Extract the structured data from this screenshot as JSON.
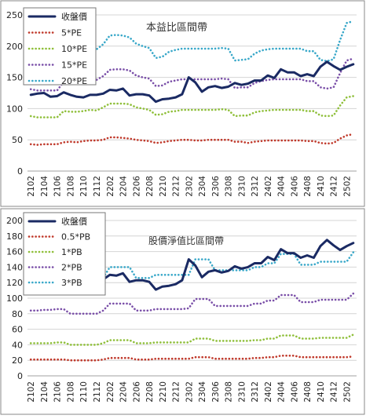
{
  "chart_data": [
    {
      "type": "line",
      "title": "本益比區間帶",
      "xlabel": "",
      "ylabel": "",
      "ylim": [
        0,
        250
      ],
      "yticks": [
        "0",
        "50",
        "100",
        "150",
        "200",
        "250"
      ],
      "grid": true,
      "legend_position": "top-left",
      "x": [
        "2102",
        "2103",
        "2104",
        "2105",
        "2106",
        "2107",
        "2108",
        "2109",
        "2110",
        "2111",
        "2112",
        "2201",
        "2202",
        "2203",
        "2204",
        "2205",
        "2206",
        "2207",
        "2208",
        "2209",
        "2210",
        "2211",
        "2212",
        "2301",
        "2302",
        "2303",
        "2304",
        "2305",
        "2306",
        "2307",
        "2308",
        "2309",
        "2310",
        "2311",
        "2312",
        "2401",
        "2402",
        "2403",
        "2404",
        "2405",
        "2406",
        "2407",
        "2408",
        "2409",
        "2410",
        "2411",
        "2412",
        "2501",
        "2502",
        "2503"
      ],
      "xtick_labels": [
        "2102",
        "2104",
        "2106",
        "2108",
        "2110",
        "2112",
        "2202",
        "2204",
        "2206",
        "2208",
        "2210",
        "2212",
        "2302",
        "2304",
        "2306",
        "2308",
        "2310",
        "2312",
        "2402",
        "2404",
        "2406",
        "2408",
        "2410",
        "2412",
        "2502"
      ],
      "series": [
        {
          "name": "收盤價",
          "color": "#1a2a63",
          "style": "solid",
          "values": [
            122,
            124,
            125,
            119,
            120,
            126,
            122,
            119,
            118,
            122,
            122,
            124,
            130,
            129,
            132,
            121,
            123,
            123,
            121,
            111,
            115,
            116,
            118,
            123,
            150,
            142,
            127,
            134,
            136,
            133,
            135,
            141,
            138,
            140,
            145,
            145,
            153,
            149,
            163,
            158,
            158,
            152,
            155,
            152,
            167,
            175,
            168,
            162,
            167,
            171
          ]
        },
        {
          "name": "5*PE",
          "color": "#c0392b",
          "style": "dotted",
          "values": [
            43,
            42,
            43,
            43,
            43,
            46,
            47,
            46,
            48,
            49,
            49,
            50,
            54,
            54,
            53,
            52,
            50,
            49,
            48,
            45,
            46,
            48,
            49,
            50,
            50,
            49,
            49,
            50,
            50,
            50,
            50,
            47,
            47,
            45,
            47,
            48,
            49,
            49,
            49,
            49,
            49,
            49,
            48,
            48,
            45,
            44,
            45,
            52,
            57,
            59
          ]
        },
        {
          "name": "10*PE",
          "color": "#8fbf3a",
          "style": "dotted",
          "values": [
            88,
            86,
            86,
            86,
            86,
            96,
            95,
            95,
            96,
            98,
            97,
            102,
            108,
            108,
            108,
            107,
            102,
            100,
            98,
            90,
            91,
            95,
            96,
            98,
            98,
            98,
            98,
            98,
            98,
            99,
            98,
            88,
            89,
            89,
            94,
            96,
            97,
            98,
            98,
            98,
            98,
            98,
            96,
            96,
            89,
            88,
            89,
            105,
            118,
            120
          ]
        },
        {
          "name": "15*PE",
          "color": "#7a4fa8",
          "style": "dotted",
          "values": [
            131,
            129,
            129,
            129,
            129,
            143,
            143,
            142,
            144,
            147,
            146,
            152,
            162,
            163,
            163,
            161,
            153,
            150,
            148,
            136,
            137,
            143,
            145,
            147,
            147,
            147,
            147,
            147,
            147,
            148,
            147,
            133,
            134,
            134,
            141,
            144,
            146,
            147,
            147,
            147,
            147,
            147,
            144,
            144,
            134,
            132,
            134,
            157,
            177,
            180
          ]
        },
        {
          "name": "20*PE",
          "color": "#39a8c9",
          "style": "dotted",
          "values": [
            175,
            172,
            172,
            172,
            172,
            191,
            190,
            190,
            192,
            196,
            195,
            203,
            217,
            218,
            217,
            214,
            204,
            200,
            197,
            181,
            183,
            191,
            194,
            196,
            196,
            196,
            196,
            196,
            196,
            197,
            196,
            177,
            178,
            179,
            188,
            193,
            195,
            196,
            196,
            196,
            196,
            196,
            192,
            192,
            178,
            176,
            179,
            210,
            237,
            240
          ]
        }
      ]
    },
    {
      "type": "line",
      "title": "股價淨值比區間帶",
      "xlabel": "",
      "ylabel": "",
      "ylim": [
        0,
        200
      ],
      "yticks": [
        "0",
        "20",
        "40",
        "60",
        "80",
        "100",
        "120",
        "140",
        "160",
        "180",
        "200"
      ],
      "grid": true,
      "legend_position": "top-left",
      "x": [
        "2102",
        "2103",
        "2104",
        "2105",
        "2106",
        "2107",
        "2108",
        "2109",
        "2110",
        "2111",
        "2112",
        "2201",
        "2202",
        "2203",
        "2204",
        "2205",
        "2206",
        "2207",
        "2208",
        "2209",
        "2210",
        "2211",
        "2212",
        "2301",
        "2302",
        "2303",
        "2304",
        "2305",
        "2306",
        "2307",
        "2308",
        "2309",
        "2310",
        "2311",
        "2312",
        "2401",
        "2402",
        "2403",
        "2404",
        "2405",
        "2406",
        "2407",
        "2408",
        "2409",
        "2410",
        "2411",
        "2412",
        "2501",
        "2502",
        "2503"
      ],
      "xtick_labels": [
        "2102",
        "2104",
        "2106",
        "2108",
        "2110",
        "2112",
        "2202",
        "2204",
        "2206",
        "2208",
        "2210",
        "2212",
        "2302",
        "2304",
        "2306",
        "2308",
        "2310",
        "2312",
        "2402",
        "2404",
        "2406",
        "2408",
        "2410",
        "2412",
        "2502"
      ],
      "series": [
        {
          "name": "收盤價",
          "color": "#1a2a63",
          "style": "solid",
          "values": [
            122,
            124,
            125,
            119,
            120,
            126,
            122,
            119,
            118,
            122,
            122,
            124,
            130,
            129,
            132,
            121,
            123,
            123,
            121,
            111,
            115,
            116,
            118,
            123,
            150,
            142,
            127,
            134,
            136,
            133,
            135,
            141,
            138,
            140,
            145,
            145,
            153,
            149,
            163,
            158,
            158,
            152,
            155,
            152,
            167,
            175,
            168,
            162,
            167,
            171
          ]
        },
        {
          "name": "0.5*PB",
          "color": "#c0392b",
          "style": "dotted",
          "values": [
            21,
            21,
            21,
            21,
            21,
            21,
            20,
            20,
            20,
            20,
            20,
            21,
            23,
            23,
            23,
            23,
            21,
            21,
            21,
            22,
            22,
            22,
            22,
            22,
            22,
            24,
            24,
            24,
            22,
            22,
            22,
            22,
            22,
            22,
            23,
            23,
            24,
            24,
            26,
            26,
            26,
            24,
            24,
            24,
            24,
            24,
            24,
            24,
            24,
            25
          ]
        },
        {
          "name": "1*PB",
          "color": "#8fbf3a",
          "style": "dotted",
          "values": [
            42,
            42,
            42,
            42,
            43,
            43,
            40,
            40,
            40,
            40,
            40,
            42,
            46,
            46,
            46,
            46,
            42,
            42,
            42,
            43,
            43,
            43,
            43,
            43,
            43,
            48,
            48,
            48,
            45,
            45,
            45,
            45,
            45,
            45,
            46,
            46,
            48,
            48,
            52,
            52,
            52,
            48,
            48,
            48,
            49,
            49,
            49,
            49,
            49,
            53
          ]
        },
        {
          "name": "2*PB",
          "color": "#7a4fa8",
          "style": "dotted",
          "values": [
            84,
            84,
            85,
            85,
            86,
            86,
            80,
            80,
            80,
            80,
            80,
            84,
            93,
            93,
            93,
            93,
            84,
            84,
            84,
            86,
            86,
            86,
            86,
            86,
            87,
            99,
            99,
            99,
            90,
            90,
            90,
            90,
            90,
            90,
            93,
            93,
            97,
            97,
            104,
            104,
            104,
            95,
            95,
            95,
            98,
            98,
            98,
            98,
            98,
            106
          ]
        },
        {
          "name": "3*PB",
          "color": "#39a8c9",
          "style": "dotted",
          "values": [
            126,
            126,
            127,
            127,
            129,
            129,
            120,
            120,
            120,
            120,
            120,
            126,
            140,
            140,
            140,
            140,
            126,
            126,
            126,
            130,
            130,
            130,
            130,
            130,
            130,
            150,
            150,
            150,
            136,
            136,
            136,
            136,
            136,
            136,
            140,
            140,
            145,
            145,
            157,
            157,
            157,
            143,
            143,
            143,
            147,
            147,
            147,
            147,
            147,
            159
          ]
        }
      ]
    }
  ]
}
